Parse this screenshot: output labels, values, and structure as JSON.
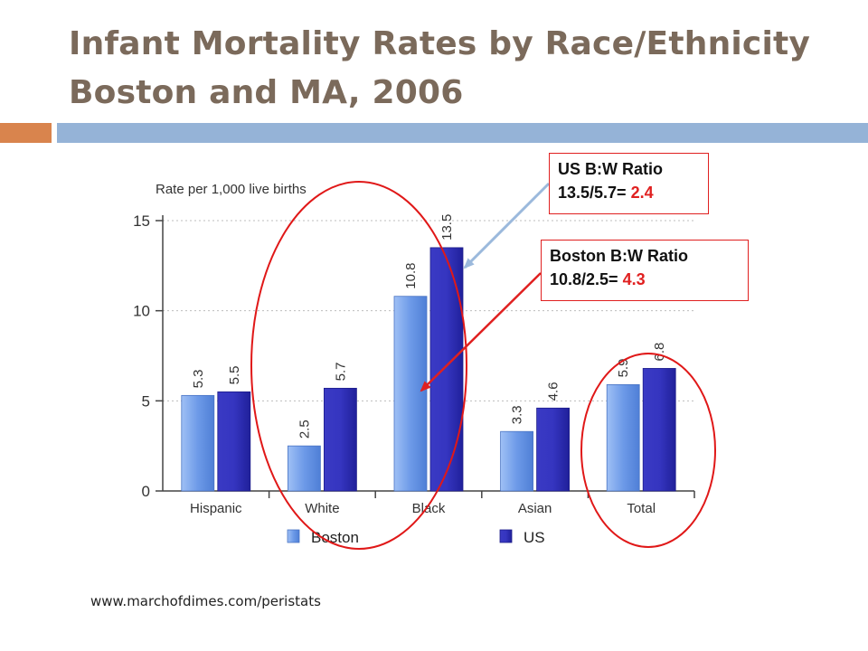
{
  "slide": {
    "title_line1": "Infant Mortality Rates by Race/Ethnicity",
    "title_line2": "Boston and MA, 2006",
    "source": "www.marchofdimes.com/peristats"
  },
  "annotations": {
    "us_ratio": {
      "line1": "US B:W Ratio",
      "line2_prefix": "13.5/5.7= ",
      "line2_value": "2.4"
    },
    "boston_ratio": {
      "line1": "Boston B:W Ratio",
      "line2_prefix": "10.8/2.5= ",
      "line2_value": "4.3"
    }
  },
  "colors": {
    "title": "#7b6a5b",
    "boston_bar": "#6d9ae8",
    "us_bar": "#2f2fb4",
    "highlight": "#e02020",
    "accent_orange": "#d9844d",
    "accent_blue": "#95b3d7"
  },
  "chart_data": {
    "type": "bar",
    "ylabel": "Rate per 1,000 live births",
    "ylim": [
      0,
      15
    ],
    "yticks": [
      0,
      5,
      10,
      15
    ],
    "grid": true,
    "legend_position": "bottom",
    "categories": [
      "Hispanic",
      "White",
      "Black",
      "Asian",
      "Total"
    ],
    "series": [
      {
        "name": "Boston",
        "values": [
          5.3,
          2.5,
          10.8,
          3.3,
          5.9
        ]
      },
      {
        "name": "US",
        "values": [
          5.5,
          5.7,
          13.5,
          4.6,
          6.8
        ]
      }
    ],
    "value_labels": [
      [
        "5.3",
        "2.5",
        "10.8",
        "3.3",
        "5.9"
      ],
      [
        "5.5",
        "5.7",
        "13.5",
        "4.6",
        "6.8"
      ]
    ]
  }
}
